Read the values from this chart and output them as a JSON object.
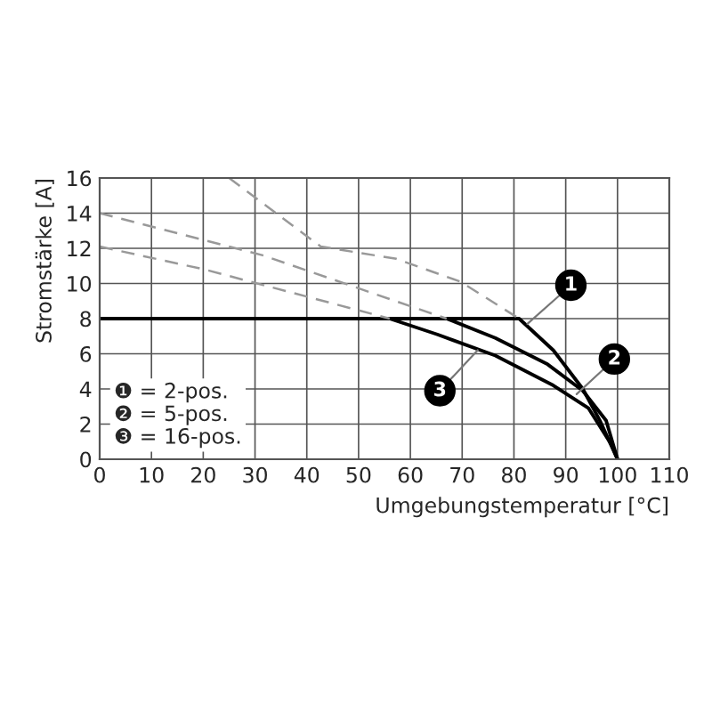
{
  "chart_data": {
    "type": "line",
    "xlabel": "Umgebungstemperatur [°C]",
    "ylabel": "Stromstärke [A]",
    "xlim": [
      0,
      110
    ],
    "ylim": [
      0,
      16
    ],
    "xticks": [
      0,
      10,
      20,
      30,
      40,
      50,
      60,
      70,
      80,
      90,
      100,
      110
    ],
    "yticks": [
      0,
      2,
      4,
      6,
      8,
      10,
      12,
      14,
      16
    ],
    "grid": true,
    "marker": "none",
    "series": [
      {
        "color": "#000000",
        "line_style": "solid",
        "x": [
          0,
          81,
          87.6,
          93.3,
          96.6,
          100
        ],
        "values": [
          8,
          8,
          6.2,
          4.0,
          2.2,
          0
        ]
      },
      {
        "color": "#000000",
        "line_style": "solid",
        "x": [
          67,
          76.4,
          86.5,
          93.3,
          97.8,
          100
        ],
        "values": [
          8,
          6.9,
          5.4,
          3.9,
          2.2,
          0
        ]
      },
      {
        "color": "#000000",
        "line_style": "solid",
        "x": [
          56,
          65.2,
          76.4,
          87.6,
          94.4,
          98.9,
          100
        ],
        "values": [
          8,
          7.1,
          5.9,
          4.2,
          2.9,
          0.8,
          0
        ]
      },
      {
        "color": "#999999",
        "line_style": "dashed",
        "x": [
          25,
          42.7,
          57.3,
          69.7,
          81
        ],
        "values": [
          16,
          12.1,
          11.4,
          10.1,
          8
        ]
      },
      {
        "color": "#999999",
        "line_style": "dashed",
        "x": [
          0,
          31.5,
          67
        ],
        "values": [
          14,
          11.6,
          8
        ]
      },
      {
        "color": "#999999",
        "line_style": "dashed",
        "x": [
          0,
          20.2,
          56
        ],
        "values": [
          12.1,
          10.8,
          8
        ]
      }
    ],
    "annotations": [
      {
        "text": "1",
        "x": 82.6,
        "y": 7.7
      },
      {
        "text": "2",
        "x": 92.1,
        "y": 3.7
      },
      {
        "text": "3",
        "x": 73,
        "y": 6.2
      },
      "❶ = 2-pos.",
      "❷ = 5-pos.",
      "❸ = 16-pos."
    ]
  }
}
